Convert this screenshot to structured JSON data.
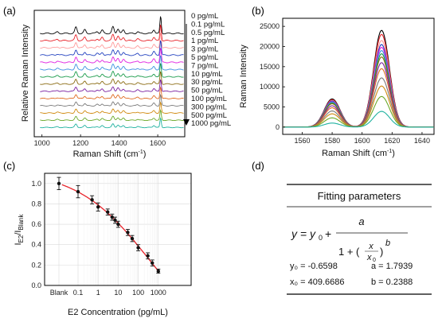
{
  "panels": {
    "a": {
      "label": "(a)",
      "xlabel": "Raman Shift (cm",
      "xlabel_sup": "-1",
      "xlabel_end": ")",
      "ylabel": "Relative Raman Intensity",
      "xticks": [
        "1000",
        "1200",
        "1400",
        "1600"
      ],
      "xlim": [
        960,
        1740
      ],
      "legend": [
        "0 pg/mL",
        "0.1 pg/mL",
        "0.5 pg/mL",
        "1 pg/mL",
        "3 pg/mL",
        "5 pg/mL",
        "7 pg/mL",
        "10 pg/mL",
        "30 pg/mL",
        "50 pg/mL",
        "100 pg/mL",
        "300 pg/mL",
        "500 pg/mL",
        "1000 pg/mL"
      ]
    },
    "b": {
      "label": "(b)",
      "xlabel": "Raman Shift (cm",
      "xlabel_sup": "-1",
      "xlabel_end": ")",
      "ylabel": "Raman Intensity",
      "xticks": [
        "1560",
        "1580",
        "1600",
        "1620",
        "1640"
      ],
      "yticks": [
        "0",
        "5000",
        "10000",
        "15000",
        "20000",
        "25000"
      ],
      "xlim": [
        1547,
        1648
      ],
      "ylim": [
        -1800,
        27000
      ]
    },
    "c": {
      "label": "(c)",
      "ylabel_main": "I",
      "ylabel_sub1": "E2",
      "ylabel_slash": "/I",
      "ylabel_sub2": "Blank",
      "xlabel": "E2 Concentration (pg/mL)",
      "yticks": [
        "0.0",
        "0.2",
        "0.4",
        "0.6",
        "0.8",
        "1.0"
      ],
      "xticks": [
        "Blank",
        "0.1",
        "1",
        "10",
        "100",
        "1000"
      ],
      "ylim": [
        0,
        1.1
      ]
    },
    "d": {
      "label": "(d)",
      "title": "Fitting parameters",
      "params": {
        "y0": "y₀ = -0.6598",
        "a": "a = 1.7939",
        "x0": "x₀ = 409.6686",
        "b": "b = 0.2388"
      }
    }
  },
  "colors": [
    "#000000",
    "#e8232a",
    "#ff9a9a",
    "#1f3fbf",
    "#e020e0",
    "#3c90e0",
    "#1a9b4a",
    "#8a6a10",
    "#7a1fa0",
    "#e06a20",
    "#7a7a7a",
    "#d08a10",
    "#6aa828",
    "#20b2a0"
  ],
  "chart_data": [
    {
      "panel": "a",
      "type": "line",
      "title": "",
      "xlabel": "Raman Shift (cm-1)",
      "ylabel": "Relative Raman Intensity",
      "xlim": [
        960,
        1740
      ],
      "series_names": [
        "0 pg/mL",
        "0.1 pg/mL",
        "0.5 pg/mL",
        "1 pg/mL",
        "3 pg/mL",
        "5 pg/mL",
        "7 pg/mL",
        "10 pg/mL",
        "30 pg/mL",
        "50 pg/mL",
        "100 pg/mL",
        "300 pg/mL",
        "500 pg/mL",
        "1000 pg/mL"
      ],
      "stacked_offset": true,
      "peaks_cm1": [
        1080,
        1176,
        1222,
        1286,
        1312,
        1368,
        1394,
        1422,
        1496,
        1580,
        1615
      ],
      "peak_heights": [
        0.12,
        0.55,
        0.32,
        0.18,
        0.28,
        0.58,
        0.42,
        0.3,
        0.16,
        0.34,
        1.55
      ]
    },
    {
      "panel": "b",
      "type": "line",
      "title": "",
      "xlabel": "Raman Shift (cm-1)",
      "ylabel": "Raman Intensity",
      "xlim": [
        1547,
        1648
      ],
      "ylim": [
        -1800,
        27000
      ],
      "series_names": [
        "0 pg/mL",
        "0.1 pg/mL",
        "0.5 pg/mL",
        "1 pg/mL",
        "3 pg/mL",
        "5 pg/mL",
        "7 pg/mL",
        "10 pg/mL",
        "30 pg/mL",
        "50 pg/mL",
        "100 pg/mL",
        "300 pg/mL",
        "500 pg/mL",
        "1000 pg/mL"
      ],
      "peak1_x": 1580,
      "peak2_x": 1613,
      "peak2_heights": [
        24000,
        23000,
        21500,
        20500,
        19800,
        19000,
        18200,
        17400,
        16000,
        14500,
        12200,
        10200,
        7600,
        3900
      ],
      "peak1_heights": [
        7000,
        6800,
        6600,
        6500,
        6300,
        6200,
        6000,
        5800,
        5300,
        4800,
        4000,
        3300,
        2300,
        1000
      ]
    },
    {
      "panel": "c",
      "type": "scatter",
      "title": "",
      "xlabel": "E2 Concentration (pg/mL)",
      "ylabel": "IE2/IBlank",
      "x_scale": "log",
      "ylim": [
        0,
        1.1
      ],
      "categories": [
        "Blank",
        "0.1",
        "0.5",
        "1",
        "3",
        "5",
        "7",
        "10",
        "30",
        "50",
        "100",
        "300",
        "500",
        "1000"
      ],
      "x": [
        0,
        0.1,
        0.5,
        1,
        3,
        5,
        7,
        10,
        30,
        50,
        100,
        300,
        500,
        1000
      ],
      "y": [
        1.0,
        0.92,
        0.84,
        0.77,
        0.72,
        0.67,
        0.64,
        0.6,
        0.52,
        0.46,
        0.37,
        0.29,
        0.22,
        0.14
      ],
      "y_err": [
        0.06,
        0.06,
        0.04,
        0.04,
        0.03,
        0.03,
        0.03,
        0.03,
        0.03,
        0.03,
        0.03,
        0.03,
        0.03,
        0.02
      ],
      "fit": {
        "y0": -0.6598,
        "a": 1.7939,
        "x0": 409.6686,
        "b": 0.2388
      },
      "fit_color": "#e8232a"
    }
  ]
}
